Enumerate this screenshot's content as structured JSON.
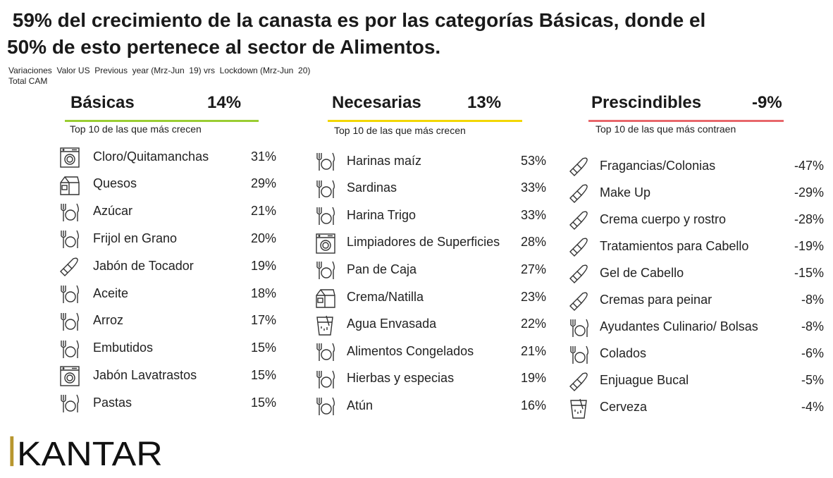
{
  "header": {
    "title_line1": " 59% del crecimiento de la canasta es por las categorías Básicas, donde el",
    "title_line2": "50% de esto pertenece al sector de Alimentos.",
    "subtitle_line1": "Variaciones  Valor US  Previous  year (Mrz-Jun  19) vrs  Lockdown (Mrz-Jun  20)",
    "subtitle_line2": "Total CAM"
  },
  "chart_data": {
    "type": "table",
    "title": "59% del crecimiento de la canasta es por las categorías Básicas, donde el 50% de esto pertenece al sector de Alimentos.",
    "columns": [
      {
        "name": "Básicas",
        "total": "14%",
        "accent": "#9ACD32",
        "caption": "Top 10 de las que más crecen",
        "items": [
          {
            "label": "Cloro/Quitamanchas",
            "value": "31%",
            "icon": "washing-machine"
          },
          {
            "label": "Quesos",
            "value": "29%",
            "icon": "milk-carton"
          },
          {
            "label": "Azúcar",
            "value": "21%",
            "icon": "plate-cutlery"
          },
          {
            "label": "Frijol en Grano",
            "value": "20%",
            "icon": "plate-cutlery"
          },
          {
            "label": "Jabón de Tocador",
            "value": "19%",
            "icon": "lipstick"
          },
          {
            "label": "Aceite",
            "value": "18%",
            "icon": "plate-cutlery"
          },
          {
            "label": "Arroz",
            "value": "17%",
            "icon": "plate-cutlery"
          },
          {
            "label": "Embutidos",
            "value": "15%",
            "icon": "plate-cutlery"
          },
          {
            "label": "Jabón Lavatrastos",
            "value": "15%",
            "icon": "washing-machine"
          },
          {
            "label": "Pastas",
            "value": "15%",
            "icon": "plate-cutlery"
          }
        ]
      },
      {
        "name": "Necesarias",
        "total": "13%",
        "accent": "#F2D600",
        "caption": "Top 10 de las que más crecen",
        "items": [
          {
            "label": "Harinas maíz",
            "value": "53%",
            "icon": "plate-cutlery"
          },
          {
            "label": "Sardinas",
            "value": "33%",
            "icon": "plate-cutlery"
          },
          {
            "label": "Harina Trigo",
            "value": "33%",
            "icon": "plate-cutlery"
          },
          {
            "label": "Limpiadores de Superficies",
            "value": "28%",
            "icon": "washing-machine"
          },
          {
            "label": "Pan de Caja",
            "value": "27%",
            "icon": "plate-cutlery"
          },
          {
            "label": "Crema/Natilla",
            "value": "23%",
            "icon": "milk-carton"
          },
          {
            "label": "Agua Envasada",
            "value": "22%",
            "icon": "glass"
          },
          {
            "label": "Alimentos Congelados",
            "value": "21%",
            "icon": "plate-cutlery"
          },
          {
            "label": "Hierbas y especias",
            "value": "19%",
            "icon": "plate-cutlery"
          },
          {
            "label": "Atún",
            "value": "16%",
            "icon": "plate-cutlery"
          }
        ]
      },
      {
        "name": "Prescindibles",
        "total": "-9%",
        "accent": "#E8676B",
        "caption": "Top 10 de las que más contraen",
        "items": [
          {
            "label": "Fragancias/Colonias",
            "value": "-47%",
            "icon": "lipstick"
          },
          {
            "label": "Make Up",
            "value": "-29%",
            "icon": "lipstick"
          },
          {
            "label": "Crema cuerpo y rostro",
            "value": "-28%",
            "icon": "lipstick"
          },
          {
            "label": "Tratamientos para Cabello",
            "value": "-19%",
            "icon": "lipstick"
          },
          {
            "label": "Gel de Cabello",
            "value": "-15%",
            "icon": "lipstick"
          },
          {
            "label": "Cremas para peinar",
            "value": "-8%",
            "icon": "lipstick"
          },
          {
            "label": "Ayudantes Culinario/ Bolsas",
            "value": "-8%",
            "icon": "plate-cutlery"
          },
          {
            "label": "Colados",
            "value": "-6%",
            "icon": "plate-cutlery"
          },
          {
            "label": "Enjuague Bucal",
            "value": "-5%",
            "icon": "lipstick"
          },
          {
            "label": "Cerveza",
            "value": "-4%",
            "icon": "glass"
          }
        ]
      }
    ]
  },
  "footer": {
    "logo_text": "KANTAR",
    "logo_accent": "#B8962E"
  }
}
